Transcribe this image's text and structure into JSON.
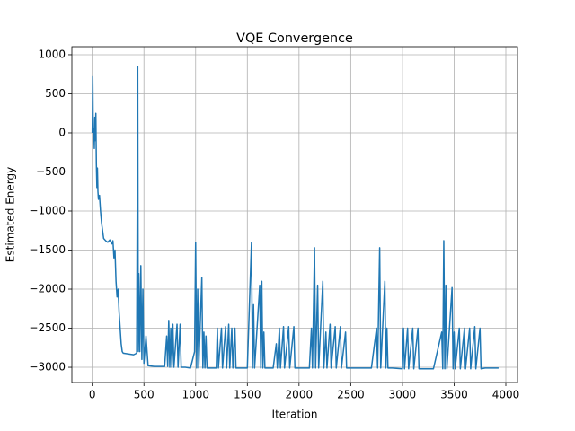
{
  "chart_data": {
    "type": "line",
    "title": "VQE Convergence",
    "x_label": "Iteration",
    "y_label": "Estimated Energy",
    "xlim": [
      -197,
      4113
    ],
    "ylim": [
      -3195,
      1103
    ],
    "xticks": [
      0,
      500,
      1000,
      1500,
      2000,
      2500,
      3000,
      3500,
      4000
    ],
    "yticks": [
      {
        "value": -3000,
        "label": "−3000"
      },
      {
        "value": -2500,
        "label": "−2500"
      },
      {
        "value": -2000,
        "label": "−2000"
      },
      {
        "value": -1500,
        "label": "−1500"
      },
      {
        "value": -1000,
        "label": "−1000"
      },
      {
        "value": -500,
        "label": "−500"
      },
      0,
      500,
      1000
    ],
    "grid": true,
    "series": [
      {
        "color": "#1f77b4",
        "x": [
          0,
          5,
          10,
          15,
          20,
          25,
          30,
          35,
          40,
          45,
          50,
          55,
          60,
          70,
          80,
          90,
          100,
          110,
          130,
          150,
          170,
          190,
          200,
          210,
          220,
          230,
          240,
          250,
          260,
          270,
          280,
          290,
          300,
          350,
          400,
          430,
          440,
          445,
          450,
          460,
          470,
          480,
          490,
          500,
          520,
          540,
          600,
          650,
          700,
          720,
          730,
          740,
          750,
          760,
          770,
          780,
          790,
          820,
          830,
          850,
          860,
          900,
          950,
          990,
          1000,
          1010,
          1020,
          1030,
          1060,
          1070,
          1080,
          1090,
          1100,
          1110,
          1150,
          1200,
          1210,
          1220,
          1250,
          1260,
          1290,
          1300,
          1320,
          1330,
          1350,
          1360,
          1380,
          1390,
          1450,
          1500,
          1540,
          1550,
          1560,
          1570,
          1620,
          1630,
          1640,
          1650,
          1660,
          1670,
          1700,
          1750,
          1780,
          1790,
          1810,
          1820,
          1850,
          1860,
          1900,
          1910,
          1950,
          1960,
          2000,
          2100,
          2120,
          2130,
          2150,
          2160,
          2180,
          2190,
          2230,
          2240,
          2260,
          2270,
          2300,
          2310,
          2350,
          2360,
          2400,
          2410,
          2450,
          2460,
          2500,
          2600,
          2700,
          2750,
          2760,
          2780,
          2790,
          2830,
          2840,
          2850,
          2860,
          2900,
          3000,
          3010,
          3020,
          3050,
          3060,
          3100,
          3110,
          3150,
          3160,
          3200,
          3300,
          3380,
          3390,
          3400,
          3410,
          3420,
          3430,
          3480,
          3490,
          3500,
          3510,
          3550,
          3560,
          3600,
          3610,
          3650,
          3660,
          3700,
          3710,
          3750,
          3760,
          3800,
          3930
        ],
        "values": [
          0,
          720,
          -100,
          50,
          -200,
          200,
          -100,
          250,
          -400,
          -700,
          -450,
          -750,
          -850,
          -800,
          -1000,
          -1150,
          -1250,
          -1350,
          -1380,
          -1400,
          -1370,
          -1420,
          -1380,
          -1600,
          -1500,
          -1900,
          -2100,
          -2000,
          -2300,
          -2500,
          -2700,
          -2800,
          -2820,
          -2830,
          -2840,
          -2820,
          850,
          -2800,
          -1800,
          -2800,
          -1700,
          -2900,
          -2000,
          -2950,
          -2600,
          -2980,
          -2990,
          -2990,
          -2990,
          -2600,
          -2990,
          -2400,
          -3000,
          -2500,
          -3000,
          -2450,
          -3000,
          -2450,
          -3000,
          -2450,
          -3000,
          -3000,
          -3010,
          -2800,
          -1400,
          -3010,
          -2000,
          -3010,
          -1850,
          -3010,
          -2550,
          -3010,
          -2600,
          -3010,
          -3010,
          -3010,
          -2500,
          -3010,
          -2500,
          -3010,
          -2480,
          -3010,
          -2450,
          -3010,
          -2500,
          -3010,
          -2500,
          -3010,
          -3010,
          -3010,
          -1400,
          -3010,
          -2200,
          -3010,
          -1950,
          -3010,
          -1900,
          -3010,
          -2550,
          -3010,
          -3010,
          -3010,
          -2700,
          -3010,
          -2500,
          -3010,
          -2480,
          -3010,
          -2480,
          -3010,
          -2480,
          -3010,
          -3010,
          -3010,
          -2500,
          -3010,
          -1470,
          -3010,
          -1950,
          -3010,
          -1900,
          -3010,
          -2550,
          -3010,
          -2450,
          -3010,
          -2480,
          -3010,
          -2480,
          -3010,
          -2550,
          -3010,
          -3010,
          -3010,
          -3010,
          -2500,
          -3010,
          -1470,
          -3010,
          -1900,
          -3010,
          -2500,
          -3010,
          -3010,
          -3020,
          -2500,
          -3020,
          -2500,
          -3020,
          -2500,
          -3020,
          -2500,
          -3020,
          -3020,
          -3020,
          -2550,
          -3020,
          -1380,
          -3020,
          -1950,
          -3020,
          -1980,
          -3020,
          -2550,
          -3020,
          -2500,
          -3020,
          -2500,
          -3020,
          -2500,
          -3020,
          -2480,
          -3020,
          -2500,
          -3020,
          -3010,
          -3010
        ]
      }
    ]
  }
}
